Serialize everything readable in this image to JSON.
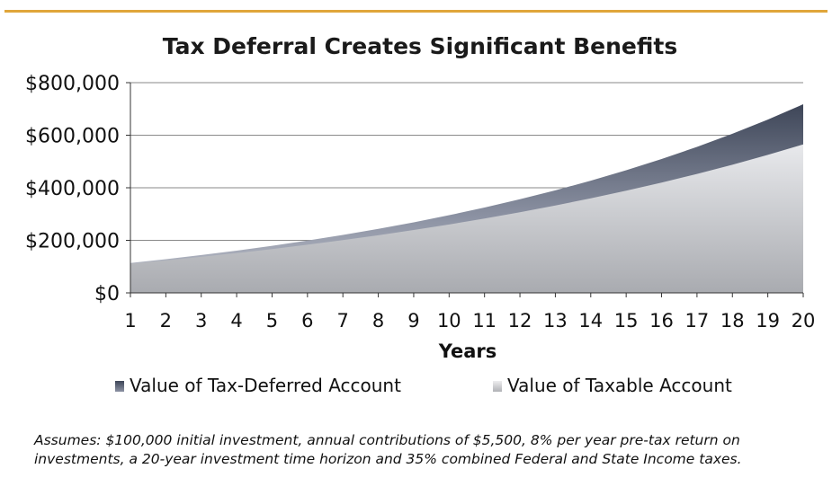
{
  "chart_data": {
    "type": "area",
    "title": "Tax Deferral Creates Significant Benefits",
    "xlabel": "Years",
    "ylabel": "",
    "x": [
      1,
      2,
      3,
      4,
      5,
      6,
      7,
      8,
      9,
      10,
      11,
      12,
      13,
      14,
      15,
      16,
      17,
      18,
      19,
      20
    ],
    "ylim": [
      0,
      800000
    ],
    "yticks": [
      0,
      200000,
      400000,
      600000,
      800000
    ],
    "ytick_labels": [
      "$0",
      "$200,000",
      "$400,000",
      "$600,000",
      "$800,000"
    ],
    "grid": true,
    "legend_position": "bottom",
    "series": [
      {
        "name": "Value of Tax-Deferred Account",
        "color": "#6e7587",
        "values": [
          113500,
          128080,
          143826,
          160832,
          179199,
          199035,
          220458,
          243594,
          268582,
          295568,
          324714,
          356191,
          390186,
          426901,
          466553,
          509377,
          555627,
          605577,
          659523,
          717785
        ]
      },
      {
        "name": "Value of Taxable Account",
        "color": "#c9cacd",
        "values": [
          110700,
          123441,
          137015,
          151477,
          166885,
          183300,
          200789,
          219421,
          239272,
          260421,
          282953,
          306959,
          332535,
          359784,
          388814,
          419743,
          452695,
          487802,
          525205,
          565054
        ]
      }
    ]
  },
  "footnote": "Assumes: $100,000 initial investment, annual contributions of $5,500, 8% per year pre-tax return on investments, a 20-year investment time horizon and 35% combined Federal and State Income taxes."
}
